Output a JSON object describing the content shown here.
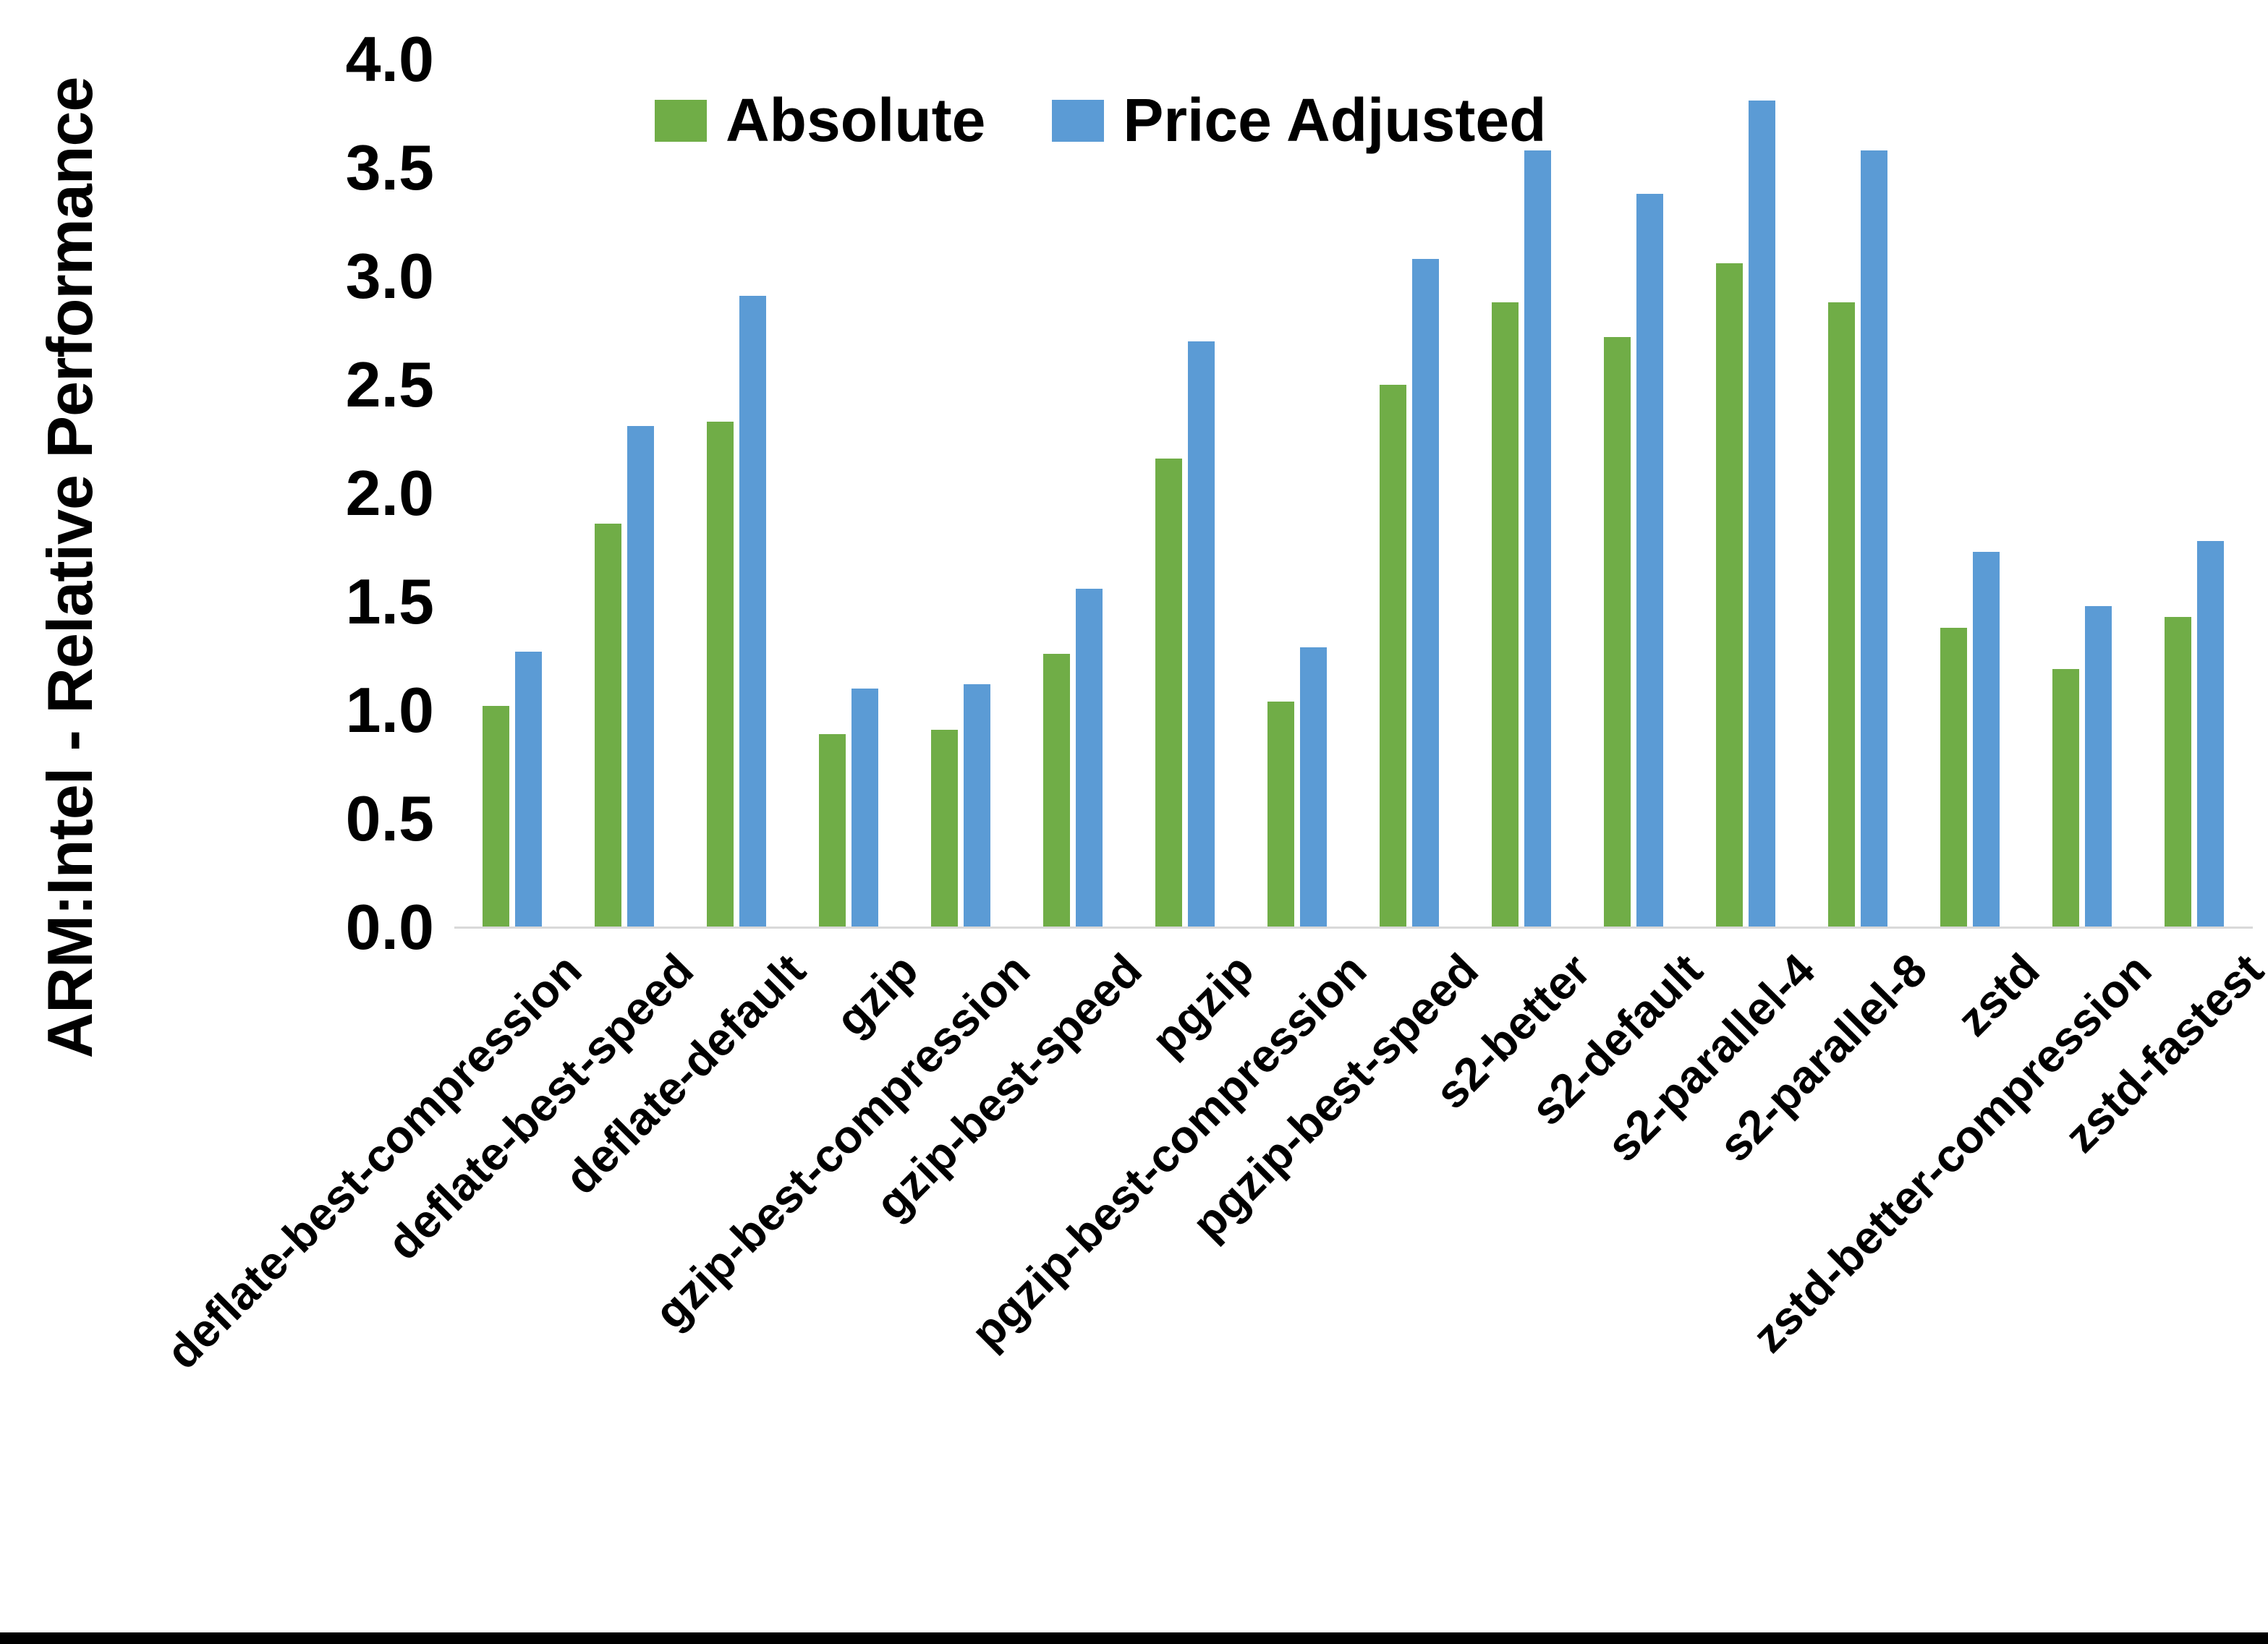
{
  "chart_data": {
    "type": "bar",
    "title": "",
    "ylabel": "ARM:Intel - Relative Performance",
    "xlabel": "",
    "ylim": [
      0.0,
      4.0
    ],
    "ytick_step": 0.5,
    "ytick_labels": [
      "0.0",
      "0.5",
      "1.0",
      "1.5",
      "2.0",
      "2.5",
      "3.0",
      "3.5",
      "4.0"
    ],
    "grid": false,
    "legend_position": "top-center",
    "axis_line_color": "#D9D9D9",
    "categories": [
      "deflate-best-compression",
      "deflate-best-speed",
      "deflate-default",
      "gzip",
      "gzip-best-compression",
      "gzip-best-speed",
      "pgzip",
      "pgzip-best-compression",
      "pgzip-best-speed",
      "s2-better",
      "s2-default",
      "s2-parallel-4",
      "s2-parallel-8",
      "zstd",
      "zstd-better-compression",
      "zstd-fastest"
    ],
    "series": [
      {
        "name": "Absolute",
        "color": "#70AD47",
        "values": [
          1.02,
          1.86,
          2.33,
          0.89,
          0.91,
          1.26,
          2.16,
          1.04,
          2.5,
          2.88,
          2.72,
          3.06,
          2.88,
          1.38,
          1.19,
          1.43
        ]
      },
      {
        "name": "Price Adjusted",
        "color": "#5B9BD5",
        "values": [
          1.27,
          2.31,
          2.91,
          1.1,
          1.12,
          1.56,
          2.7,
          1.29,
          3.08,
          3.58,
          3.38,
          3.81,
          3.58,
          1.73,
          1.48,
          1.78
        ]
      }
    ]
  }
}
